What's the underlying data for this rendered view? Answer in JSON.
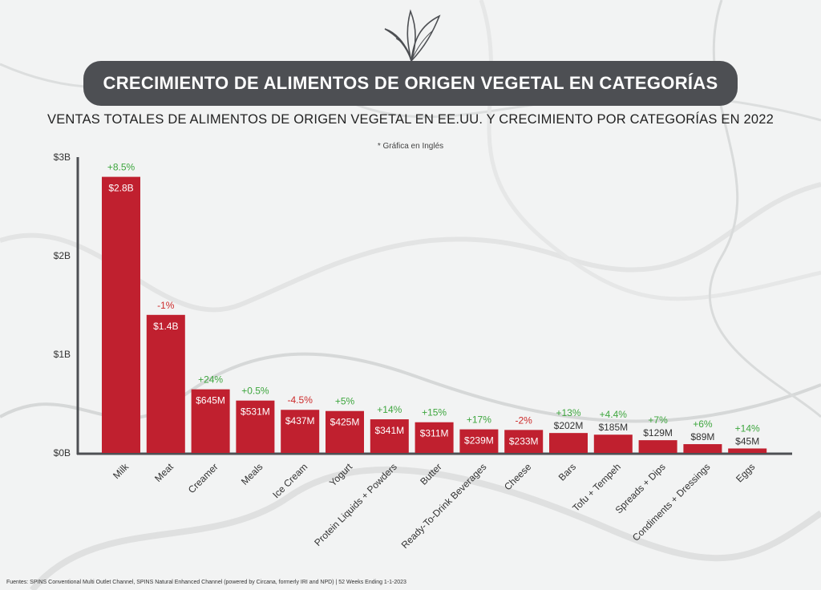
{
  "header": {
    "title": "CRECIMIENTO DE ALIMENTOS DE ORIGEN VEGETAL EN CATEGORÍAS",
    "subtitle": "VENTAS TOTALES DE ALIMENTOS DE ORIGEN VEGETAL EN EE.UU. Y CRECIMIENTO POR CATEGORÍAS EN 2022",
    "note": "* Gráfica en Inglés"
  },
  "footer": {
    "source": "Fuentes: SPINS Conventional Multi Outlet Channel, SPINS Natural Enhanced Channel (powered by Circana, formerly IRI and NPD) | 52 Weeks Ending 1-1-2023"
  },
  "colors": {
    "bar": "#c0202f",
    "positive": "#3ea63e",
    "negative": "#cc2a2a",
    "axis": "#4d4f53",
    "title_bg": "#4d4f53"
  },
  "chart_data": {
    "type": "bar",
    "categories": [
      "Milk",
      "Meat",
      "Creamer",
      "Meals",
      "Ice Cream",
      "Yogurt",
      "Protein Liquids + Powders",
      "Butter",
      "Ready-To-Drink Beverages",
      "Cheese",
      "Bars",
      "Tofu + Tempeh",
      "Spreads + Dips",
      "Condiments + Dressings",
      "Eggs"
    ],
    "values": [
      2.8,
      1.4,
      0.645,
      0.531,
      0.437,
      0.425,
      0.341,
      0.311,
      0.239,
      0.233,
      0.202,
      0.185,
      0.129,
      0.089,
      0.045
    ],
    "value_labels": [
      "$2.8B",
      "$1.4B",
      "$645M",
      "$531M",
      "$437M",
      "$425M",
      "$341M",
      "$311M",
      "$239M",
      "$233M",
      "$202M",
      "$185M",
      "$129M",
      "$89M",
      "$45M"
    ],
    "growth_labels": [
      "+8.5%",
      "-1%",
      "+24%",
      "+0.5%",
      "-4.5%",
      "+5%",
      "+14%",
      "+15%",
      "+17%",
      "-2%",
      "+13%",
      "+4.4%",
      "+7%",
      "+6%",
      "+14%"
    ],
    "growth": [
      8.5,
      -1,
      24,
      0.5,
      -4.5,
      5,
      14,
      15,
      17,
      -2,
      13,
      4.4,
      7,
      6,
      14
    ],
    "y_ticks": [
      "$0B",
      "$1B",
      "$2B",
      "$3B"
    ],
    "y_tick_values": [
      0,
      1,
      2,
      3
    ],
    "ylim": [
      0,
      3
    ],
    "unit": "billions USD",
    "grid": false,
    "legend": "none"
  }
}
